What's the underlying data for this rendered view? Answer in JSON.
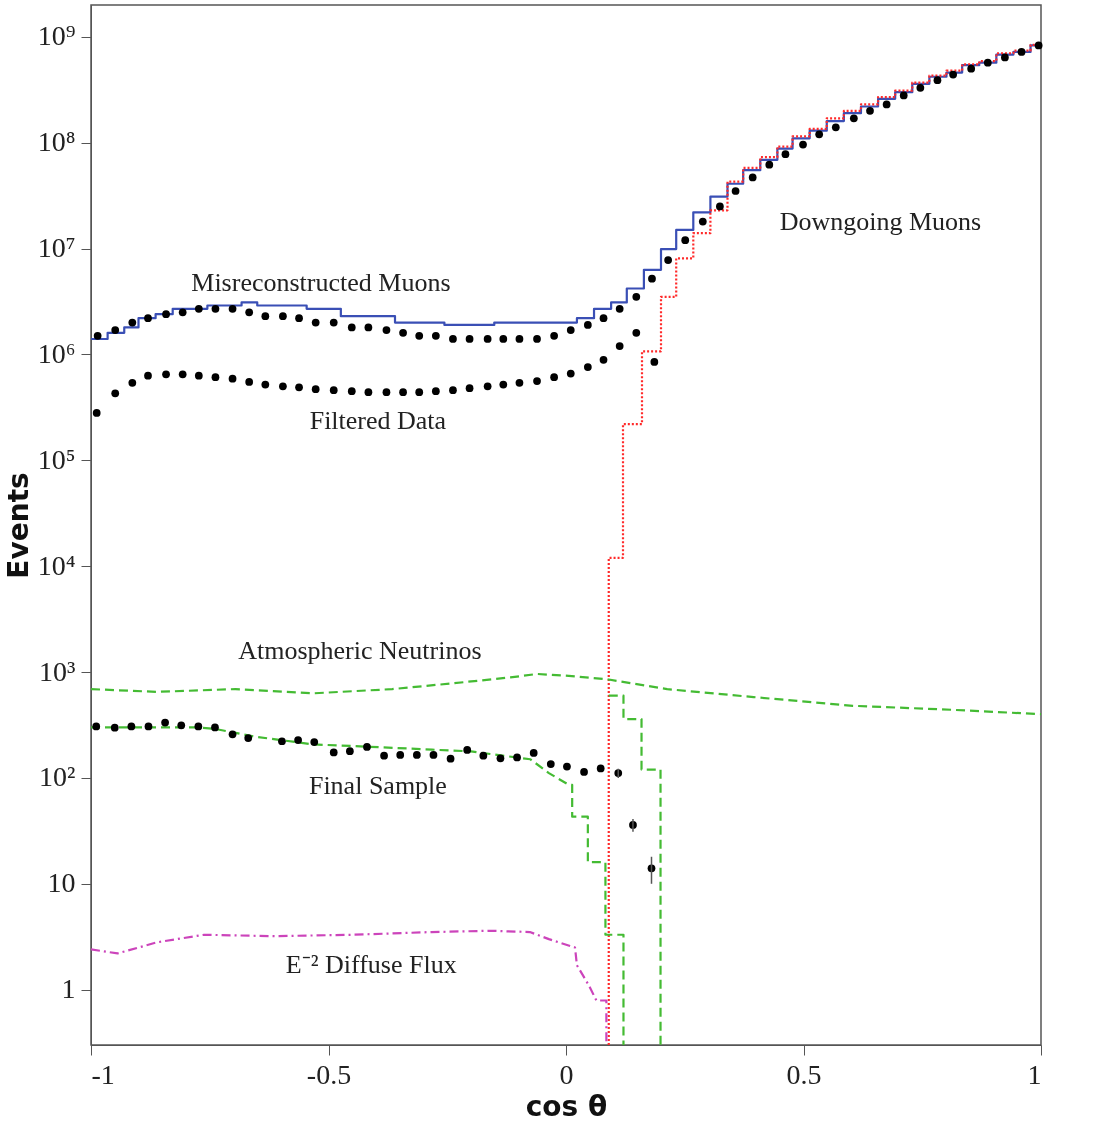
{
  "chart_data": {
    "type": "step",
    "xlabel": "cos θ",
    "ylabel": "Events",
    "log": "y",
    "xlim": [
      -1,
      1
    ],
    "ylim": [
      0.3,
      2000000000.0
    ],
    "xticks": [
      -1,
      -0.5,
      0,
      0.5,
      1
    ],
    "yticks": [
      1,
      10,
      {
        "value": 100,
        "label": "10²"
      },
      {
        "value": 1000,
        "label": "10³"
      },
      {
        "value": 10000,
        "label": "10⁴"
      },
      {
        "value": 100000,
        "label": "10⁵"
      },
      {
        "value": 1000000,
        "label": "10⁶"
      },
      {
        "value": 10000000,
        "label": "10⁷"
      },
      {
        "value": 100000000,
        "label": "10⁸"
      },
      {
        "value": 1000000000,
        "label": "10⁹"
      }
    ],
    "series": [
      {
        "color": "#3a4fb5",
        "line_style": "solid",
        "x": [
          -1,
          -0.965,
          -0.93,
          -0.9,
          -0.864,
          -0.828,
          -0.755,
          -0.683,
          -0.65,
          -0.546,
          -0.474,
          -0.36,
          -0.256,
          -0.151,
          -0.013,
          0.023,
          0.059,
          0.095,
          0.128,
          0.164,
          0.2,
          0.232,
          0.268,
          0.304,
          0.34,
          0.373,
          0.409,
          0.445,
          0.477,
          0.513,
          0.549,
          0.585,
          0.621,
          0.657,
          0.693,
          0.729,
          0.765,
          0.801,
          0.834,
          0.87,
          0.906,
          0.942,
          0.978,
          1
        ],
        "values": [
          1400000.0,
          1600000.0,
          1800000.0,
          2200000.0,
          2400000.0,
          2700000.0,
          2900000.0,
          3100000.0,
          2900000.0,
          2700000.0,
          2300000.0,
          2000000.0,
          1900000.0,
          2000000.0,
          2000000.0,
          2200000.0,
          2700000.0,
          3100000.0,
          4200000.0,
          6300000.0,
          9900000.0,
          15000000.0,
          22000000.0,
          31000000.0,
          41000000.0,
          55000000.0,
          69000000.0,
          88000000.0,
          110000000.0,
          130000000.0,
          160000000.0,
          190000000.0,
          220000000.0,
          260000000.0,
          300000000.0,
          360000000.0,
          420000000.0,
          460000000.0,
          540000000.0,
          570000000.0,
          680000000.0,
          720000000.0,
          830000000.0,
          830000000.0
        ]
      },
      {
        "color": "#ff2a2a",
        "line_style": "dotted",
        "x": [
          0.09,
          0.09,
          0.12,
          0.16,
          0.2,
          0.232,
          0.268,
          0.304,
          0.34,
          0.373,
          0.409,
          0.445,
          0.477,
          0.513,
          0.549,
          0.585,
          0.621,
          0.657,
          0.693,
          0.729,
          0.765,
          0.801,
          0.834,
          0.87,
          0.906,
          0.942,
          0.978,
          1
        ],
        "values": [
          0.3,
          12000.0,
          220000.0,
          1070000.0,
          3500000.0,
          8100000.0,
          14000000.0,
          23000000.0,
          43000000.0,
          58000000.0,
          73000000.0,
          92000000.0,
          115000000.0,
          135000000.0,
          170000000.0,
          200000000.0,
          230000000.0,
          270000000.0,
          310000000.0,
          370000000.0,
          430000000.0,
          480000000.0,
          550000000.0,
          590000000.0,
          700000000.0,
          740000000.0,
          840000000.0,
          840000000.0
        ]
      },
      {
        "type": "scatter",
        "color": "#000000",
        "marker": "circle",
        "x": [
          -0.986,
          -0.949,
          -0.913,
          -0.88,
          -0.842,
          -0.807,
          -0.773,
          -0.738,
          -0.702,
          -0.667,
          -0.633,
          -0.596,
          -0.562,
          -0.527,
          -0.489,
          -0.451,
          -0.416,
          -0.378,
          -0.343,
          -0.309,
          -0.274,
          -0.238,
          -0.203,
          -0.165,
          -0.132,
          -0.098,
          -0.061,
          -0.025,
          0.01,
          0.046,
          0.079,
          0.113,
          0.148,
          0.181,
          0.215,
          0.251,
          0.288,
          0.324,
          0.357,
          0.393,
          0.428,
          0.462,
          0.499,
          0.533,
          0.568,
          0.606,
          0.64,
          0.675,
          0.711,
          0.746,
          0.782,
          0.815,
          0.853,
          0.888,
          0.924,
          0.959,
          0.995
        ],
        "values": [
          1500000.0,
          1700000.0,
          2000000.0,
          2200000.0,
          2400000.0,
          2500000.0,
          2700000.0,
          2700000.0,
          2700000.0,
          2500000.0,
          2300000.0,
          2300000.0,
          2200000.0,
          2000000.0,
          2000000.0,
          1800000.0,
          1800000.0,
          1700000.0,
          1600000.0,
          1500000.0,
          1500000.0,
          1400000.0,
          1400000.0,
          1400000.0,
          1400000.0,
          1400000.0,
          1400000.0,
          1500000.0,
          1700000.0,
          1900000.0,
          2200000.0,
          2700000.0,
          3500000.0,
          5200000.0,
          7800000.0,
          12000000.0,
          18000000.0,
          25000000.0,
          35000000.0,
          47000000.0,
          62000000.0,
          78000000.0,
          96000000.0,
          120000000.0,
          140000000.0,
          170000000.0,
          200000000.0,
          230000000.0,
          280000000.0,
          330000000.0,
          390000000.0,
          440000000.0,
          500000000.0,
          570000000.0,
          640000000.0,
          720000000.0,
          830000000.0
        ]
      },
      {
        "type": "scatter",
        "color": "#000000",
        "marker": "circle",
        "x": [
          -0.988,
          -0.949,
          -0.913,
          -0.88,
          -0.842,
          -0.807,
          -0.773,
          -0.738,
          -0.702,
          -0.667,
          -0.633,
          -0.596,
          -0.562,
          -0.527,
          -0.489,
          -0.451,
          -0.416,
          -0.378,
          -0.343,
          -0.309,
          -0.274,
          -0.238,
          -0.203,
          -0.165,
          -0.132,
          -0.098,
          -0.061,
          -0.025,
          0.01,
          0.046,
          0.079,
          0.113,
          0.148,
          0.186
        ],
        "values": [
          280000.0,
          430000.0,
          540000.0,
          630000.0,
          650000.0,
          650000.0,
          630000.0,
          610000.0,
          590000.0,
          550000.0,
          520000.0,
          500000.0,
          490000.0,
          470000.0,
          460000.0,
          450000.0,
          440000.0,
          440000.0,
          440000.0,
          440000.0,
          450000.0,
          460000.0,
          480000.0,
          500000.0,
          520000.0,
          540000.0,
          560000.0,
          610000.0,
          660000.0,
          760000.0,
          890000.0,
          1200000.0,
          1600000.0,
          850000.0
        ]
      },
      {
        "type": "line",
        "color": "#44bb33",
        "line_style": "dashed",
        "x": [
          -1,
          -0.861,
          -0.696,
          -0.531,
          -0.366,
          -0.242,
          -0.117,
          -0.061,
          0.006,
          0.09,
          0.213,
          0.395,
          0.604,
          0.813,
          1
        ],
        "values": [
          690,
          650,
          690,
          630,
          690,
          780,
          890,
          960,
          920,
          850,
          690,
          580,
          480,
          440,
          400
        ]
      },
      {
        "type": "line",
        "color": "#44bb33",
        "line_style": "dashed",
        "x": [
          -1,
          -0.777,
          -0.738,
          -0.654,
          -0.531,
          -0.447,
          -0.282,
          -0.2,
          -0.075,
          -0.036,
          0.006,
          0.013,
          0.013,
          0.046,
          0.046,
          0.083,
          0.083,
          0.121,
          0.121
        ],
        "values": [
          300,
          300,
          290,
          245,
          207,
          200,
          185,
          178,
          150,
          111,
          86,
          86,
          43,
          43,
          16,
          16,
          3.3,
          3.3,
          0.3
        ]
      },
      {
        "type": "line",
        "color": "#44bb33",
        "line_style": "dashed",
        "x": [
          0.09,
          0.121,
          0.121,
          0.159,
          0.159,
          0.199,
          0.199
        ],
        "values": [
          600,
          600,
          360,
          360,
          120,
          120,
          0.3
        ]
      },
      {
        "type": "scatter",
        "color": "#000000",
        "marker": "circle",
        "x": [
          -0.989,
          -0.95,
          -0.915,
          -0.879,
          -0.844,
          -0.81,
          -0.774,
          -0.739,
          -0.702,
          -0.669,
          -0.598,
          -0.564,
          -0.53,
          -0.489,
          -0.455,
          -0.419,
          -0.383,
          -0.349,
          -0.314,
          -0.279,
          -0.243,
          -0.208,
          -0.174,
          -0.138,
          -0.103,
          -0.068,
          -0.032,
          0.002,
          0.038,
          0.073,
          0.11,
          0.141,
          0.18
        ],
        "values": [
          306,
          298,
          306,
          306,
          333,
          314,
          306,
          300,
          258,
          238,
          222,
          228,
          218,
          174,
          179,
          196,
          162,
          165,
          165,
          165,
          152,
          184,
          162,
          153,
          156,
          172,
          135,
          128,
          114,
          123,
          111,
          36,
          14
        ],
        "errors": [
          null,
          null,
          null,
          null,
          null,
          null,
          null,
          null,
          null,
          null,
          null,
          null,
          null,
          null,
          null,
          null,
          null,
          null,
          null,
          null,
          null,
          null,
          null,
          null,
          null,
          null,
          null,
          null,
          null,
          null,
          [
            100,
            122
          ],
          [
            31,
            41
          ],
          [
            10,
            18
          ]
        ]
      },
      {
        "type": "line",
        "color": "#cc44bb",
        "line_style": "dashdot",
        "x": [
          -1,
          -0.944,
          -0.861,
          -0.762,
          -0.613,
          -0.448,
          -0.283,
          -0.159,
          -0.076,
          -0.036,
          0.019,
          0.023,
          0.048,
          0.064,
          0.085,
          0.085
        ],
        "values": [
          2.4,
          2.2,
          2.8,
          3.3,
          3.2,
          3.3,
          3.5,
          3.6,
          3.5,
          3.0,
          2.5,
          1.7,
          1.1,
          0.79,
          0.79,
          0.3
        ]
      }
    ],
    "annotations": [
      "Misreconstructed Muons",
      "Filtered Data",
      "Downgoing Muons",
      "Atmospheric Neutrinos",
      "Final Sample",
      "E⁻² Diffuse Flux"
    ]
  }
}
